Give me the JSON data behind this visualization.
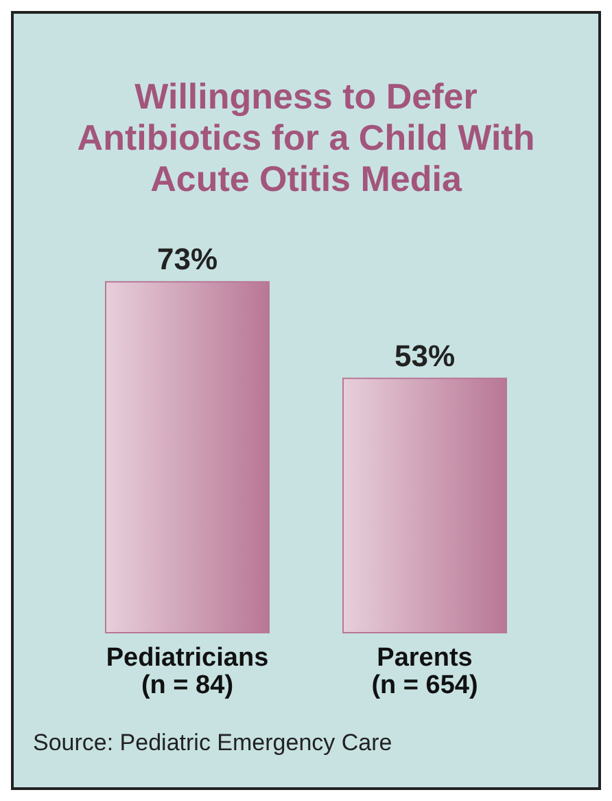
{
  "chart_data": {
    "type": "bar",
    "title": "Willingness to Defer\nAntibiotics for a Child With\nAcute Otitis Media",
    "categories": [
      "Pediatricians\n(n = 84)",
      "Parents\n(n = 654)"
    ],
    "values": [
      73,
      53
    ],
    "value_labels": [
      "73%",
      "53%"
    ],
    "color": "#b97796",
    "annotations": [
      "Source: Pediatric Emergency Care"
    ]
  }
}
